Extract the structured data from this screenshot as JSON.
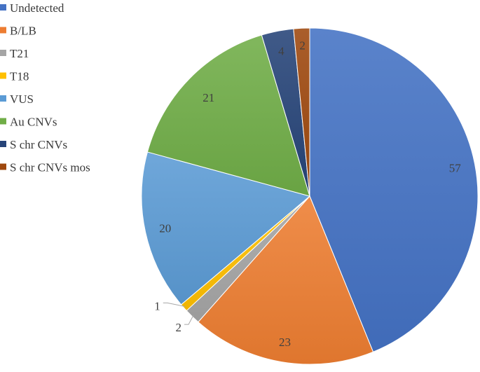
{
  "chart_data": {
    "type": "pie",
    "title": "",
    "categories": [
      "Undetected",
      "B/LB",
      "T21",
      "T18",
      "VUS",
      "Au CNVs",
      "S chr CNVs",
      "S chr CNVs mos"
    ],
    "values": [
      57,
      23,
      2,
      1,
      20,
      21,
      4,
      2
    ],
    "colors": [
      "#4472C4",
      "#ED7D31",
      "#A5A5A5",
      "#FFC000",
      "#5B9BD5",
      "#70AD47",
      "#264478",
      "#9E480E"
    ],
    "legend_position": "top-left",
    "start_angle": "12 o'clock",
    "direction": "clockwise"
  }
}
